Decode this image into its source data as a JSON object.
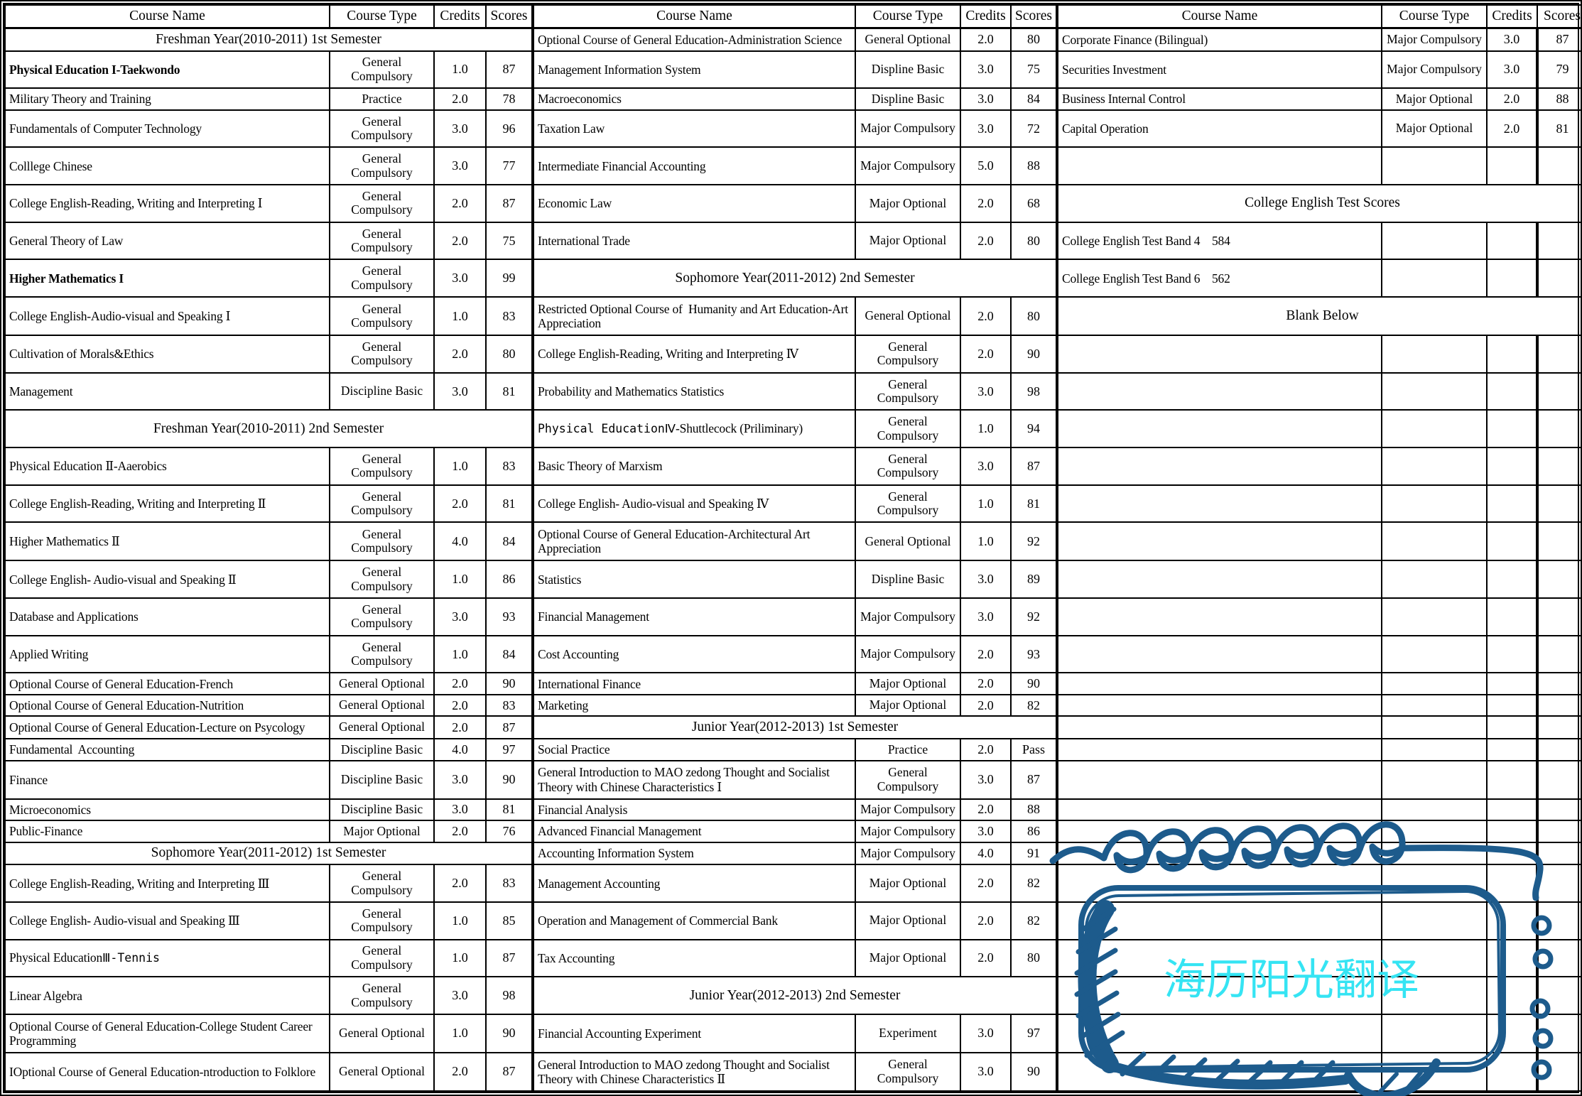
{
  "table": {
    "columns": [
      "Course Name",
      "Course Type",
      "Credits",
      "Scores"
    ],
    "groups": [
      {
        "rows": [
          {
            "section": "Freshman Year(2010-2011) 1st Semester"
          },
          {
            "name": "Physical Education I-Taekwondo",
            "type": "General Compulsory",
            "credits": "1.0",
            "scores": "87",
            "bold": true
          },
          {
            "name": "Military Theory and Training",
            "type": "Practice",
            "credits": "2.0",
            "scores": "78"
          },
          {
            "name": "Fundamentals of Computer Technology",
            "type": "General Compulsory",
            "credits": "3.0",
            "scores": "96"
          },
          {
            "name": "Colllege Chinese",
            "type": "General Compulsory",
            "credits": "3.0",
            "scores": "77"
          },
          {
            "name": "College English-Reading, Writing and Interpreting Ⅰ",
            "type": "General Compulsory",
            "credits": "2.0",
            "scores": "87"
          },
          {
            "name": "General Theory of Law",
            "type": "General Compulsory",
            "credits": "2.0",
            "scores": "75"
          },
          {
            "name": "Higher Mathematics I",
            "type": "General Compulsory",
            "credits": "3.0",
            "scores": "99",
            "bold": true
          },
          {
            "name": "College English-Audio-visual and Speaking Ⅰ",
            "type": "General Compulsory",
            "credits": "1.0",
            "scores": "83"
          },
          {
            "name": "Cultivation of Morals&Ethics",
            "type": "General Compulsory",
            "credits": "2.0",
            "scores": "80"
          },
          {
            "name": "Management",
            "type": "Discipline Basic",
            "credits": "3.0",
            "scores": "81"
          },
          {
            "section": "Freshman Year(2010-2011) 2nd Semester"
          },
          {
            "name": "Physical Education Ⅱ-Aaerobics",
            "type": "General Compulsory",
            "credits": "1.0",
            "scores": "83"
          },
          {
            "name": "College English-Reading, Writing and Interpreting Ⅱ",
            "type": "General Compulsory",
            "credits": "2.0",
            "scores": "81"
          },
          {
            "name": "Higher Mathematics Ⅱ",
            "type": "General Compulsory",
            "credits": "4.0",
            "scores": "84"
          },
          {
            "name": "College English- Audio-visual and Speaking Ⅱ",
            "type": "General Compulsory",
            "credits": "1.0",
            "scores": "86"
          },
          {
            "name": "Database and Applications",
            "type": "General Compulsory",
            "credits": "3.0",
            "scores": "93"
          },
          {
            "name": "Applied Writing",
            "type": "General Compulsory",
            "credits": "1.0",
            "scores": "84"
          },
          {
            "name": "Optional Course of General Education-French",
            "type": "General Optional",
            "credits": "2.0",
            "scores": "90"
          },
          {
            "name": "Optional Course of General Education-Nutrition",
            "type": "General Optional",
            "credits": "2.0",
            "scores": "83"
          },
          {
            "name": "Optional Course of General Education-Lecture on Psycology",
            "type": "General Optional",
            "credits": "2.0",
            "scores": "87"
          },
          {
            "name": "Fundamental  Accounting",
            "type": "Discipline Basic",
            "credits": "4.0",
            "scores": "97"
          },
          {
            "name": "Finance",
            "type": "Discipline Basic",
            "credits": "3.0",
            "scores": "90"
          },
          {
            "name": "Microeconomics",
            "type": "Discipline Basic",
            "credits": "3.0",
            "scores": "81"
          },
          {
            "name": "Public-Finance",
            "type": "Major Optional",
            "credits": "2.0",
            "scores": "76"
          },
          {
            "section": "Sophomore Year(2011-2012) 1st Semester"
          },
          {
            "name": "College English-Reading, Writing and Interpreting Ⅲ",
            "type": "General Compulsory",
            "credits": "2.0",
            "scores": "83"
          },
          {
            "name": "College English- Audio-visual and Speaking Ⅲ",
            "type": "General Compulsory",
            "credits": "1.0",
            "scores": "85"
          },
          {
            "name": "Physical EducationⅢ-Tennis",
            "type": "General Compulsory",
            "credits": "1.0",
            "scores": "87",
            "parts": [
              {
                "text": "Physical Education",
                "mono": false
              },
              {
                "text": "Ⅲ-Tennis",
                "mono": true
              }
            ]
          },
          {
            "name": "Linear Algebra",
            "type": "General Compulsory",
            "credits": "3.0",
            "scores": "98"
          },
          {
            "name": "Optional Course of General Education-College Student Career Programming",
            "type": "General Optional",
            "credits": "1.0",
            "scores": "90"
          },
          {
            "name": "IOptional Course of General Education-ntroduction to Folklore",
            "type": "General Optional",
            "credits": "2.0",
            "scores": "87"
          }
        ]
      },
      {
        "rows": [
          {
            "name": "Optional Course of General Education-Administration Science",
            "type": "General Optional",
            "credits": "2.0",
            "scores": "80"
          },
          {
            "name": "Management Information System",
            "type": "Displine Basic",
            "credits": "3.0",
            "scores": "75"
          },
          {
            "name": "Macroeconomics",
            "type": "Displine Basic",
            "credits": "3.0",
            "scores": "84"
          },
          {
            "name": "Taxation Law",
            "type": "Major Compulsory",
            "credits": "3.0",
            "scores": "72"
          },
          {
            "name": "Intermediate Financial Accounting",
            "type": "Major Compulsory",
            "credits": "5.0",
            "scores": "88"
          },
          {
            "name": "Economic Law",
            "type": "Major Optional",
            "credits": "2.0",
            "scores": "68"
          },
          {
            "name": "International Trade",
            "type": "Major Optional",
            "credits": "2.0",
            "scores": "80"
          },
          {
            "section": "Sophomore Year(2011-2012) 2nd Semester"
          },
          {
            "name": "Restricted Optional Course of  Humanity and Art Education-Art Appreciation",
            "type": "General Optional",
            "credits": "2.0",
            "scores": "80"
          },
          {
            "name": "College English-Reading, Writing and Interpreting Ⅳ",
            "type": "General Compulsory",
            "credits": "2.0",
            "scores": "90"
          },
          {
            "name": "Probability and Mathematics Statistics",
            "type": "General Compulsory",
            "credits": "3.0",
            "scores": "98"
          },
          {
            "name": "Physical EducationⅣ-Shuttlecock (Priliminary)",
            "type": "General Compulsory",
            "credits": "1.0",
            "scores": "94",
            "parts": [
              {
                "text": "Physical EducationⅣ",
                "mono": true
              },
              {
                "text": "-Shuttlecock (Priliminary)",
                "mono": false
              }
            ]
          },
          {
            "name": "Basic Theory of Marxism",
            "type": "General Compulsory",
            "credits": "3.0",
            "scores": "87"
          },
          {
            "name": "College English- Audio-visual and Speaking Ⅳ",
            "type": "General Compulsory",
            "credits": "1.0",
            "scores": "81"
          },
          {
            "name": "Optional Course of General Education-Architectural Art Appreciation",
            "type": "General Optional",
            "credits": "1.0",
            "scores": "92"
          },
          {
            "name": "Statistics",
            "type": "Displine Basic",
            "credits": "3.0",
            "scores": "89"
          },
          {
            "name": "Financial Management",
            "type": "Major Compulsory",
            "credits": "3.0",
            "scores": "92"
          },
          {
            "name": "Cost Accounting",
            "type": "Major Compulsory",
            "credits": "2.0",
            "scores": "93"
          },
          {
            "name": "International Finance",
            "type": "Major Optional",
            "credits": "2.0",
            "scores": "90"
          },
          {
            "name": "Marketing",
            "type": "Major Optional",
            "credits": "2.0",
            "scores": "82"
          },
          {
            "section": "Junior Year(2012-2013) 1st Semester"
          },
          {
            "name": "Social Practice",
            "type": "Practice",
            "credits": "2.0",
            "scores": "Pass"
          },
          {
            "name": "General Introduction to MAO zedong Thought and Socialist Theory with Chinese Characteristics Ⅰ",
            "type": "General Compulsory",
            "credits": "3.0",
            "scores": "87"
          },
          {
            "name": "Financial Analysis",
            "type": "Major Compulsory",
            "credits": "2.0",
            "scores": "88"
          },
          {
            "name": "Advanced Financial Management",
            "type": "Major Compulsory",
            "credits": "3.0",
            "scores": "86"
          },
          {
            "name": "Accounting Information System",
            "type": "Major Compulsory",
            "credits": "4.0",
            "scores": "91"
          },
          {
            "name": "Management Accounting",
            "type": "Major Optional",
            "credits": "2.0",
            "scores": "82"
          },
          {
            "name": "Operation and Management of Commercial Bank",
            "type": "Major Optional",
            "credits": "2.0",
            "scores": "82"
          },
          {
            "name": "Tax Accounting",
            "type": "Major Optional",
            "credits": "2.0",
            "scores": "80"
          },
          {
            "section": "Junior Year(2012-2013) 2nd Semester"
          },
          {
            "name": "Financial Accounting Experiment",
            "type": "Experiment",
            "credits": "3.0",
            "scores": "97"
          },
          {
            "name": "General Introduction to MAO zedong Thought and Socialist Theory with Chinese Characteristics Ⅱ",
            "type": "General Compulsory",
            "credits": "3.0",
            "scores": "90"
          }
        ]
      },
      {
        "rows": [
          {
            "name": "Corporate Finance (Bilingual)",
            "type": "Major Compulsory",
            "credits": "3.0",
            "scores": "87"
          },
          {
            "name": "Securities Investment",
            "type": "Major Compulsory",
            "credits": "3.0",
            "scores": "79"
          },
          {
            "name": "Business Internal Control",
            "type": "Major Optional",
            "credits": "2.0",
            "scores": "88"
          },
          {
            "name": "Capital Operation",
            "type": "Major Optional",
            "credits": "2.0",
            "scores": "81"
          },
          {
            "name": "",
            "type": "",
            "credits": "",
            "scores": ""
          },
          {
            "section": "College English Test Scores"
          },
          {
            "name": "College English Test Band 4    584",
            "type": "",
            "credits": "",
            "scores": ""
          },
          {
            "name": "College English Test Band 6    562",
            "type": "",
            "credits": "",
            "scores": ""
          },
          {
            "section": "Blank Below"
          },
          {
            "name": "",
            "type": "",
            "credits": "",
            "scores": ""
          },
          {
            "name": "",
            "type": "",
            "credits": "",
            "scores": ""
          },
          {
            "name": "",
            "type": "",
            "credits": "",
            "scores": ""
          },
          {
            "name": "",
            "type": "",
            "credits": "",
            "scores": ""
          },
          {
            "name": "",
            "type": "",
            "credits": "",
            "scores": ""
          },
          {
            "name": "",
            "type": "",
            "credits": "",
            "scores": ""
          },
          {
            "name": "",
            "type": "",
            "credits": "",
            "scores": ""
          },
          {
            "name": "",
            "type": "",
            "credits": "",
            "scores": ""
          },
          {
            "name": "",
            "type": "",
            "credits": "",
            "scores": ""
          },
          {
            "name": "",
            "type": "",
            "credits": "",
            "scores": ""
          },
          {
            "name": "",
            "type": "",
            "credits": "",
            "scores": ""
          },
          {
            "name": "",
            "type": "",
            "credits": "",
            "scores": ""
          },
          {
            "name": "",
            "type": "",
            "credits": "",
            "scores": ""
          },
          {
            "name": "",
            "type": "",
            "credits": "",
            "scores": ""
          },
          {
            "name": "",
            "type": "",
            "credits": "",
            "scores": ""
          },
          {
            "name": "",
            "type": "",
            "credits": "",
            "scores": ""
          },
          {
            "name": "",
            "type": "",
            "credits": "",
            "scores": ""
          },
          {
            "name": "",
            "type": "",
            "credits": "",
            "scores": ""
          },
          {
            "name": "",
            "type": "",
            "credits": "",
            "scores": ""
          },
          {
            "name": "",
            "type": "",
            "credits": "",
            "scores": ""
          },
          {
            "name": "",
            "type": "",
            "credits": "",
            "scores": ""
          },
          {
            "name": "",
            "type": "",
            "credits": "",
            "scores": ""
          },
          {
            "name": "",
            "type": "",
            "credits": "",
            "scores": ""
          }
        ]
      }
    ]
  },
  "watermark": {
    "text": "海历阳光翻译",
    "ink_color": "#1d5b8c",
    "text_color": "#35e4f3"
  }
}
